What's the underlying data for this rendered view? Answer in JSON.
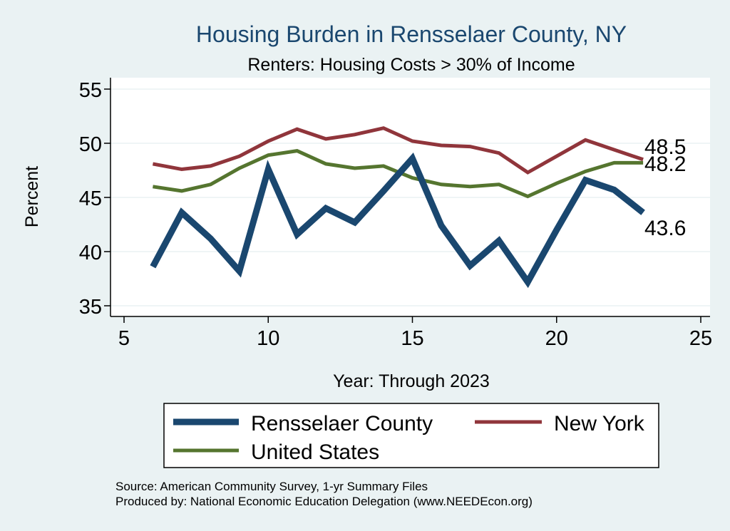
{
  "chart_data": {
    "type": "line",
    "title": "Housing Burden in Rensselaer County, NY",
    "subtitle": "Renters: Housing Costs > 30% of Income",
    "xlabel": "Year: Through 2023",
    "ylabel": "Percent",
    "xlim": [
      5,
      25
    ],
    "ylim": [
      34.5,
      55.5
    ],
    "xticks": [
      5,
      10,
      15,
      20,
      25
    ],
    "yticks": [
      35,
      40,
      45,
      50,
      55
    ],
    "grid": true,
    "series": [
      {
        "name": "Rensselaer County",
        "color": "#1a476f",
        "x": [
          6,
          7,
          8,
          9,
          10,
          11,
          12,
          13,
          14,
          15,
          16,
          17,
          18,
          19,
          20,
          21,
          22,
          23
        ],
        "values": [
          38.6,
          43.6,
          41.2,
          38.2,
          47.6,
          41.6,
          44.0,
          42.7,
          45.6,
          48.6,
          42.4,
          38.7,
          41.0,
          37.2,
          42.0,
          46.6,
          45.7,
          43.6
        ],
        "end_label": "43.6"
      },
      {
        "name": "New York",
        "color": "#90353b",
        "x": [
          6,
          7,
          8,
          9,
          10,
          11,
          12,
          13,
          14,
          15,
          16,
          17,
          18,
          19,
          20,
          21,
          22,
          23
        ],
        "values": [
          48.1,
          47.6,
          47.9,
          48.8,
          50.2,
          51.3,
          50.4,
          50.8,
          51.4,
          50.2,
          49.8,
          49.7,
          49.1,
          47.3,
          48.8,
          50.3,
          49.4,
          48.5
        ],
        "end_label": "48.5"
      },
      {
        "name": "United States",
        "color": "#55752f",
        "x": [
          6,
          7,
          8,
          9,
          10,
          11,
          12,
          13,
          14,
          15,
          16,
          17,
          18,
          19,
          20,
          21,
          22,
          23
        ],
        "values": [
          46.0,
          45.6,
          46.2,
          47.7,
          48.9,
          49.3,
          48.1,
          47.7,
          47.9,
          46.8,
          46.2,
          46.0,
          46.2,
          45.1,
          46.3,
          47.4,
          48.2,
          48.2
        ],
        "end_label": "48.2"
      }
    ],
    "legend": {
      "position": "bottom",
      "items": [
        "Rensselaer County",
        "New York",
        "United States"
      ]
    }
  },
  "notes": {
    "source": "Source: American Community Survey, 1-yr Summary Files",
    "produced_by": "Produced by: National Economic Education Delegation (www.NEEDEcon.org)"
  },
  "colors": {
    "background": "#eaf2f3",
    "plot_background": "#ffffff",
    "title": "#1a476f",
    "grid": "#eaf2f3"
  }
}
